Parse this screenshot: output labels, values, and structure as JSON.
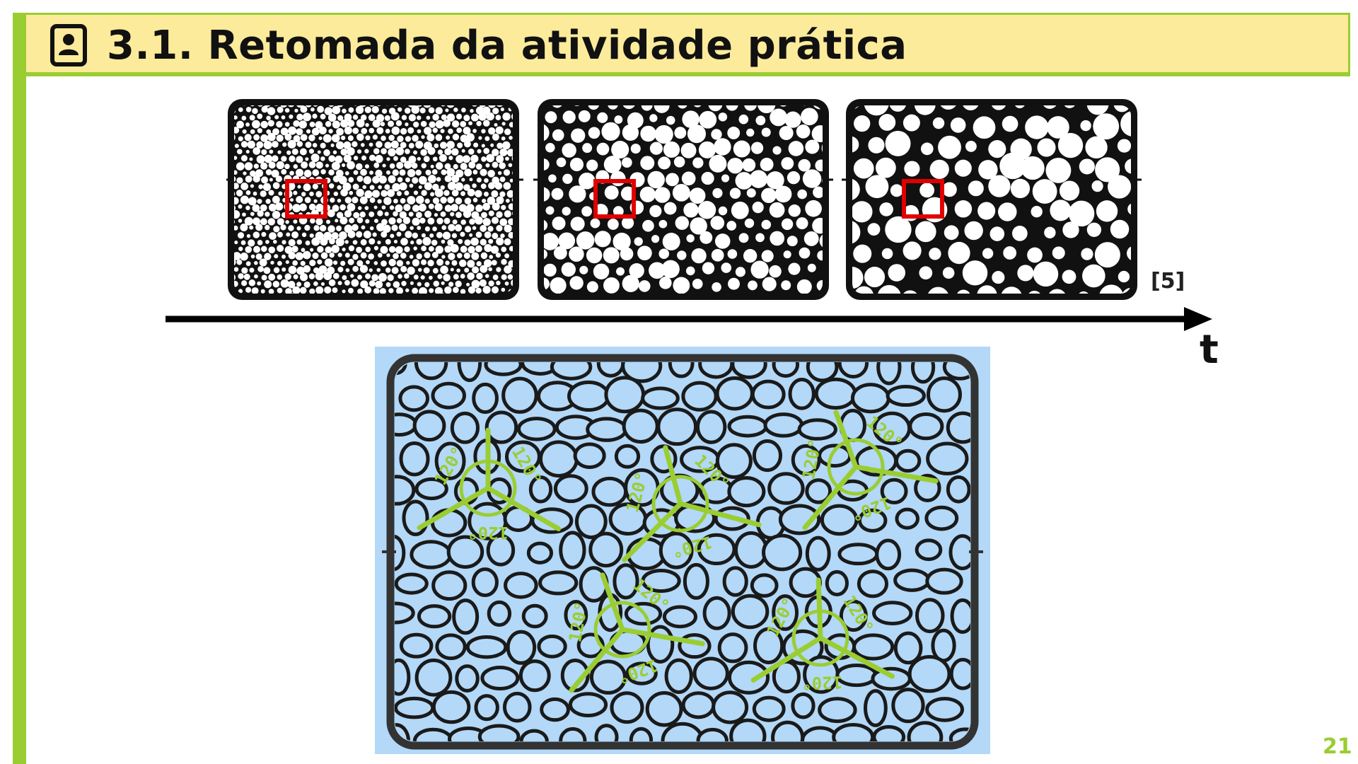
{
  "header": {
    "title": "3.1. Retomada da atividade prática",
    "icon": "id-badge-icon"
  },
  "figure": {
    "citation": "[5]",
    "time_axis_label": "t",
    "angle_label": "120°",
    "accent_color": "#9ACD32",
    "highlight_color": "#E00000",
    "foam_background": "#B3D8F8"
  },
  "footer": {
    "page_number": "21"
  }
}
